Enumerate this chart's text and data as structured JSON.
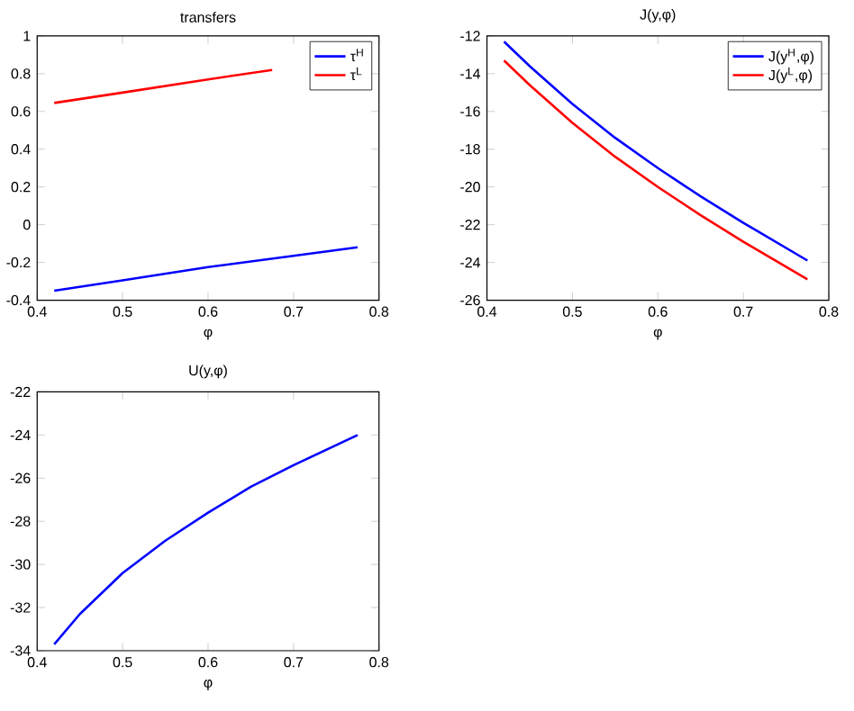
{
  "chart_data": [
    {
      "type": "line",
      "title": "transfers",
      "xlabel": "φ",
      "x": [
        0.42,
        0.5,
        0.6,
        0.7,
        0.775
      ],
      "xlim": [
        0.4,
        0.8
      ],
      "xticks": [
        0.4,
        0.5,
        0.6,
        0.7,
        0.8
      ],
      "ylim": [
        -0.4,
        1
      ],
      "yticks": [
        -0.4,
        -0.2,
        0,
        0.2,
        0.4,
        0.6,
        0.8,
        1
      ],
      "legend": "top right",
      "series": [
        {
          "name": "τ$^{H}$",
          "color": "#0000ff",
          "values": [
            -0.35,
            -0.295,
            -0.225,
            -0.165,
            -0.12
          ]
        },
        {
          "name": "τ$^{L}$",
          "color": "#ff0000",
          "x": [
            0.42,
            0.5,
            0.6,
            0.675
          ],
          "values": [
            0.645,
            0.7,
            0.77,
            0.82
          ]
        }
      ]
    },
    {
      "type": "line",
      "title": "J(y,φ)",
      "xlabel": "φ",
      "x": [
        0.42,
        0.45,
        0.5,
        0.55,
        0.6,
        0.65,
        0.7,
        0.775
      ],
      "xlim": [
        0.4,
        0.8
      ],
      "xticks": [
        0.4,
        0.5,
        0.6,
        0.7,
        0.8
      ],
      "ylim": [
        -26,
        -12
      ],
      "yticks": [
        -26,
        -24,
        -22,
        -20,
        -18,
        -16,
        -14,
        -12
      ],
      "legend": "top right",
      "series": [
        {
          "name": "J(y$^{H}$,φ)",
          "color": "#0000ff",
          "values": [
            -12.3,
            -13.6,
            -15.6,
            -17.4,
            -19.0,
            -20.5,
            -21.9,
            -23.9
          ]
        },
        {
          "name": "J(y$^{L}$,φ)",
          "color": "#ff0000",
          "values": [
            -13.3,
            -14.6,
            -16.6,
            -18.4,
            -20.0,
            -21.5,
            -22.9,
            -24.9
          ]
        }
      ]
    },
    {
      "type": "line",
      "title": "U(y,φ)",
      "xlabel": "φ",
      "x": [
        0.42,
        0.45,
        0.5,
        0.55,
        0.6,
        0.65,
        0.7,
        0.775
      ],
      "xlim": [
        0.4,
        0.8
      ],
      "xticks": [
        0.4,
        0.5,
        0.6,
        0.7,
        0.8
      ],
      "ylim": [
        -34,
        -22
      ],
      "yticks": [
        -34,
        -32,
        -30,
        -28,
        -26,
        -24,
        -22
      ],
      "series": [
        {
          "color": "#0000ff",
          "values": [
            -33.7,
            -32.3,
            -30.4,
            -28.9,
            -27.6,
            -26.4,
            -25.4,
            -24.0
          ]
        }
      ]
    }
  ]
}
